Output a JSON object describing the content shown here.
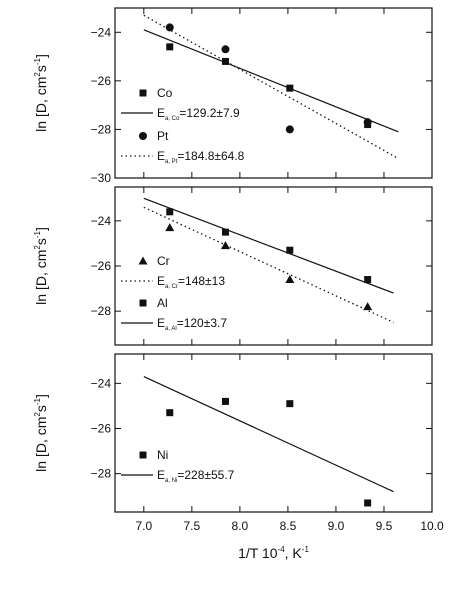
{
  "chart_data": [
    {
      "type": "scatter",
      "ylabel_parts": [
        "ln [D, cm",
        "2",
        "s",
        "-1",
        "]"
      ],
      "xlim": [
        6.7,
        10.0
      ],
      "ylim": [
        -30,
        -23
      ],
      "y_ticks": [
        -24,
        -26,
        -28,
        -30
      ],
      "series": [
        {
          "name": "Co",
          "marker": "square",
          "x": [
            7.27,
            7.85,
            8.52,
            9.33
          ],
          "y": [
            -24.6,
            -25.2,
            -26.3,
            -27.8
          ]
        },
        {
          "name": "Pt",
          "marker": "circle",
          "x": [
            7.27,
            7.85,
            8.52,
            9.33
          ],
          "y": [
            -23.8,
            -24.7,
            -28.0,
            -27.7
          ]
        }
      ],
      "fits": [
        {
          "series": "Co",
          "style": "solid",
          "label_parts": [
            "E",
            "a, Co",
            "=129.2±7.9"
          ],
          "x": [
            7.0,
            9.65
          ],
          "y": [
            -23.9,
            -28.1
          ]
        },
        {
          "series": "Pt",
          "style": "dotted",
          "label_parts": [
            "E",
            "a, Pt",
            "=184.8±64.8"
          ],
          "x": [
            7.0,
            9.65
          ],
          "y": [
            -23.3,
            -29.2
          ]
        }
      ]
    },
    {
      "type": "scatter",
      "ylabel_parts": [
        "ln [D, cm",
        "2",
        "s",
        "-1",
        "]"
      ],
      "xlim": [
        6.7,
        10.0
      ],
      "ylim": [
        -29.5,
        -22.5
      ],
      "y_ticks": [
        -24,
        -26,
        -28
      ],
      "series": [
        {
          "name": "Cr",
          "marker": "triangle",
          "x": [
            7.27,
            7.85,
            8.52,
            9.33
          ],
          "y": [
            -24.3,
            -25.1,
            -26.6,
            -27.8
          ]
        },
        {
          "name": "Al",
          "marker": "square",
          "x": [
            7.27,
            7.85,
            8.52,
            9.33
          ],
          "y": [
            -23.6,
            -24.5,
            -25.3,
            -26.6
          ]
        }
      ],
      "fits": [
        {
          "series": "Cr",
          "style": "dotted",
          "label_parts": [
            "E",
            "a, Cr",
            "=148±13"
          ],
          "x": [
            7.0,
            9.6
          ],
          "y": [
            -23.4,
            -28.5
          ]
        },
        {
          "series": "Al",
          "style": "solid",
          "label_parts": [
            "E",
            "a, Al",
            "=120±3.7"
          ],
          "x": [
            7.0,
            9.6
          ],
          "y": [
            -23.0,
            -27.2
          ]
        }
      ]
    },
    {
      "type": "scatter",
      "ylabel_parts": [
        "ln [D, cm",
        "2",
        "s",
        "-1",
        "]"
      ],
      "xlabel_parts": [
        "1/T 10",
        "-4",
        ", K",
        "-1"
      ],
      "xlim": [
        6.7,
        10.0
      ],
      "ylim": [
        -29.7,
        -22.7
      ],
      "y_ticks": [
        -24,
        -26,
        -28
      ],
      "x_ticks": [
        "7.0",
        "7.5",
        "8.0",
        "8.5",
        "9.0",
        "9.5",
        "10.0"
      ],
      "series": [
        {
          "name": "Ni",
          "marker": "square",
          "x": [
            7.27,
            7.85,
            8.52,
            9.33
          ],
          "y": [
            -25.3,
            -24.8,
            -24.9,
            -29.3
          ]
        }
      ],
      "fits": [
        {
          "series": "Ni",
          "style": "solid",
          "label_parts": [
            "E",
            "a, Ni",
            "=228±55.7"
          ],
          "x": [
            7.0,
            9.6
          ],
          "y": [
            -23.7,
            -28.8
          ]
        }
      ]
    }
  ]
}
